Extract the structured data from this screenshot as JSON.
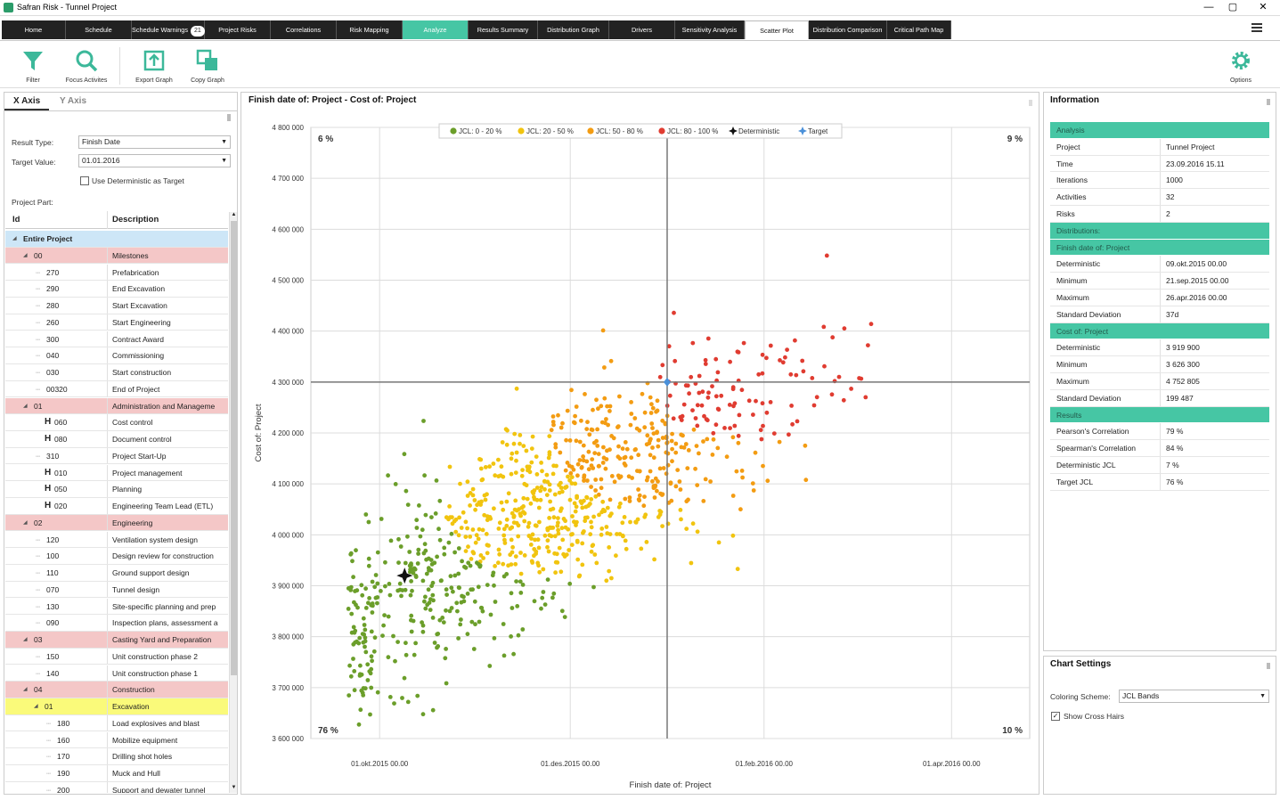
{
  "window": {
    "title": "Safran Risk - Tunnel Project",
    "minimize": "—",
    "maximize": "▢",
    "close": "✕"
  },
  "tabs": [
    {
      "label": "Home"
    },
    {
      "label": "Schedule"
    },
    {
      "label": "Schedule Warnings",
      "badge": "21"
    },
    {
      "label": "Project Risks"
    },
    {
      "label": "Correlations"
    },
    {
      "label": "Risk Mapping"
    },
    {
      "label": "Analyze"
    },
    {
      "label": "Results Summary"
    },
    {
      "label": "Distribution Graph"
    },
    {
      "label": "Drivers"
    },
    {
      "label": "Sensitivity Analysis"
    },
    {
      "label": "Scatter Plot"
    },
    {
      "label": "Distribution Comparison"
    },
    {
      "label": "Critical Path Map"
    }
  ],
  "ribbon": {
    "filter": "Filter",
    "focus": "Focus Activites",
    "export": "Export Graph",
    "copy": "Copy Graph",
    "options": "Options"
  },
  "left": {
    "tab_x": "X Axis",
    "tab_y": "Y Axis",
    "result_type_label": "Result Type:",
    "result_type": "Finish Date",
    "target_value_label": "Target Value:",
    "target_value": "01.01.2016",
    "use_deterministic": "Use Deterministic as Target",
    "project_part": "Project Part:",
    "col_id": "Id",
    "col_desc": "Description",
    "rows": [
      {
        "id": "Entire Project",
        "desc": "",
        "level": 0,
        "type": "root"
      },
      {
        "id": "00",
        "desc": "Milestones",
        "level": 1,
        "type": "group"
      },
      {
        "id": "270",
        "desc": "Prefabrication",
        "level": 2,
        "type": "ms"
      },
      {
        "id": "290",
        "desc": "End Excavation",
        "level": 2,
        "type": "ms"
      },
      {
        "id": "280",
        "desc": "Start Excavation",
        "level": 2,
        "type": "ms"
      },
      {
        "id": "260",
        "desc": "Start Engineering",
        "level": 2,
        "type": "ms"
      },
      {
        "id": "300",
        "desc": "Contract Award",
        "level": 2,
        "type": "ms"
      },
      {
        "id": "040",
        "desc": "Commissioning",
        "level": 2,
        "type": "ms"
      },
      {
        "id": "030",
        "desc": "Start construction",
        "level": 2,
        "type": "ms"
      },
      {
        "id": "00320",
        "desc": "End of Project",
        "level": 2,
        "type": "ms"
      },
      {
        "id": "01",
        "desc": "Administration and Manageme",
        "level": 1,
        "type": "group"
      },
      {
        "id": "060",
        "desc": "Cost control",
        "level": 2,
        "type": "h"
      },
      {
        "id": "080",
        "desc": "Document control",
        "level": 2,
        "type": "h"
      },
      {
        "id": "310",
        "desc": "Project Start-Up",
        "level": 2,
        "type": "ms"
      },
      {
        "id": "010",
        "desc": "Project management",
        "level": 2,
        "type": "h"
      },
      {
        "id": "050",
        "desc": "Planning",
        "level": 2,
        "type": "h"
      },
      {
        "id": "020",
        "desc": "Engineering Team Lead (ETL)",
        "level": 2,
        "type": "h"
      },
      {
        "id": "02",
        "desc": "Engineering",
        "level": 1,
        "type": "group"
      },
      {
        "id": "120",
        "desc": "Ventilation system design",
        "level": 2,
        "type": "ms"
      },
      {
        "id": "100",
        "desc": "Design review for construction",
        "level": 2,
        "type": "ms"
      },
      {
        "id": "110",
        "desc": "Ground support design",
        "level": 2,
        "type": "ms"
      },
      {
        "id": "070",
        "desc": "Tunnel design",
        "level": 2,
        "type": "ms"
      },
      {
        "id": "130",
        "desc": "Site-specific planning and prep",
        "level": 2,
        "type": "ms"
      },
      {
        "id": "090",
        "desc": "Inspection plans, assessment a",
        "level": 2,
        "type": "ms"
      },
      {
        "id": "03",
        "desc": "Casting Yard and Preparation",
        "level": 1,
        "type": "group"
      },
      {
        "id": "150",
        "desc": "Unit construction phase 2",
        "level": 2,
        "type": "ms"
      },
      {
        "id": "140",
        "desc": "Unit construction phase 1",
        "level": 2,
        "type": "ms"
      },
      {
        "id": "04",
        "desc": "Construction",
        "level": 1,
        "type": "group"
      },
      {
        "id": "01",
        "desc": "Excavation",
        "level": 2,
        "type": "sel"
      },
      {
        "id": "180",
        "desc": "Load explosives and blast",
        "level": 3,
        "type": "ms"
      },
      {
        "id": "160",
        "desc": "Mobilize equipment",
        "level": 3,
        "type": "ms"
      },
      {
        "id": "170",
        "desc": "Drilling shot holes",
        "level": 3,
        "type": "ms"
      },
      {
        "id": "190",
        "desc": "Muck and Hull",
        "level": 3,
        "type": "ms"
      },
      {
        "id": "200",
        "desc": "Support and dewater tunnel",
        "level": 3,
        "type": "ms"
      }
    ]
  },
  "chart": {
    "title": "Finish date of: Project - Cost of: Project"
  },
  "chart_data": {
    "type": "scatter",
    "xlabel": "Finish date of: Project",
    "ylabel": "Cost of: Project",
    "x_ticks": [
      "01.okt.2015 00.00",
      "01.des.2015 00.00",
      "01.feb.2016 00.00",
      "01.apr.2016 00.00"
    ],
    "x_range": [
      "2015-09-09",
      "2016-04-26"
    ],
    "ylim": [
      3600000,
      4800000
    ],
    "y_ticks": [
      "3 600 000",
      "3 700 000",
      "3 800 000",
      "3 900 000",
      "4 000 000",
      "4 100 000",
      "4 200 000",
      "4 300 000",
      "4 400 000",
      "4 500 000",
      "4 600 000",
      "4 700 000",
      "4 800 000"
    ],
    "legend": [
      "JCL: 0 - 20 %",
      "JCL: 20 - 50 %",
      "JCL: 50 - 80 %",
      "JCL: 80 - 100 %",
      "Deterministic",
      "Target"
    ],
    "legend_position": "top-center",
    "colors": {
      "jcl_0_20": "#6b9e2a",
      "jcl_20_50": "#f1c40f",
      "jcl_50_80": "#f39c12",
      "jcl_80_100": "#e03c31",
      "target": "#4a90d9"
    },
    "quadrants": {
      "top_left": "6 %",
      "top_right": "9 %",
      "bottom_left": "76 %",
      "bottom_right": "10 %"
    },
    "deterministic": {
      "x": "2015-10-09",
      "y": 3919900
    },
    "target": {
      "x": "2016-01-01",
      "y": 4300000
    },
    "n_points": 1000,
    "grid": true
  },
  "info": {
    "title": "Information",
    "rows": [
      {
        "h": "Analysis"
      },
      {
        "k": "Project",
        "v": "Tunnel Project"
      },
      {
        "k": "Time",
        "v": "23.09.2016 15.11"
      },
      {
        "k": "Iterations",
        "v": "1000"
      },
      {
        "k": "Activities",
        "v": "32"
      },
      {
        "k": "Risks",
        "v": "2"
      },
      {
        "h": "Distributions:"
      },
      {
        "h": "Finish date of: Project"
      },
      {
        "k": "Deterministic",
        "v": "09.okt.2015 00.00"
      },
      {
        "k": "Minimum",
        "v": "21.sep.2015 00.00"
      },
      {
        "k": "Maximum",
        "v": "26.apr.2016 00.00"
      },
      {
        "k": "Standard Deviation",
        "v": "37d"
      },
      {
        "h": "Cost of: Project"
      },
      {
        "k": "Deterministic",
        "v": "3 919 900"
      },
      {
        "k": "Minimum",
        "v": "3 626 300"
      },
      {
        "k": "Maximum",
        "v": "4 752 805"
      },
      {
        "k": "Standard Deviation",
        "v": "199 487"
      },
      {
        "h": "Results"
      },
      {
        "k": "Pearson's Correlation",
        "v": "79 %"
      },
      {
        "k": "Spearman's Correlation",
        "v": "84 %"
      },
      {
        "k": "Deterministic JCL",
        "v": "7 %"
      },
      {
        "k": "Target JCL",
        "v": "76 %"
      }
    ]
  },
  "settings": {
    "title": "Chart Settings",
    "coloring_label": "Coloring Scheme:",
    "coloring": "JCL Bands",
    "crosshairs": "Show Cross Hairs"
  }
}
